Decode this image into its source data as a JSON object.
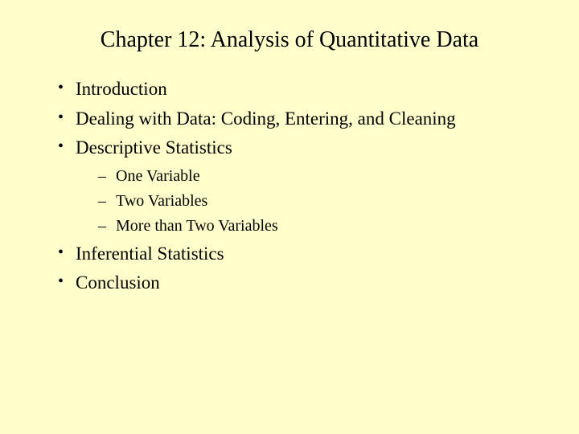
{
  "slide": {
    "title": "Chapter 12: Analysis of Quantitative Data",
    "background_color": "#ffffcc",
    "text_color": "#000000",
    "title_fontsize": 28,
    "body_fontsize": 23,
    "sub_fontsize": 20,
    "font_family": "Times New Roman",
    "bullets": [
      {
        "text": "Introduction"
      },
      {
        "text": "Dealing with Data: Coding, Entering, and Cleaning"
      },
      {
        "text": "Descriptive Statistics",
        "children": [
          {
            "text": "One Variable"
          },
          {
            "text": "Two Variables"
          },
          {
            "text": "More than Two Variables"
          }
        ]
      },
      {
        "text": "Inferential Statistics"
      },
      {
        "text": "Conclusion"
      }
    ]
  }
}
